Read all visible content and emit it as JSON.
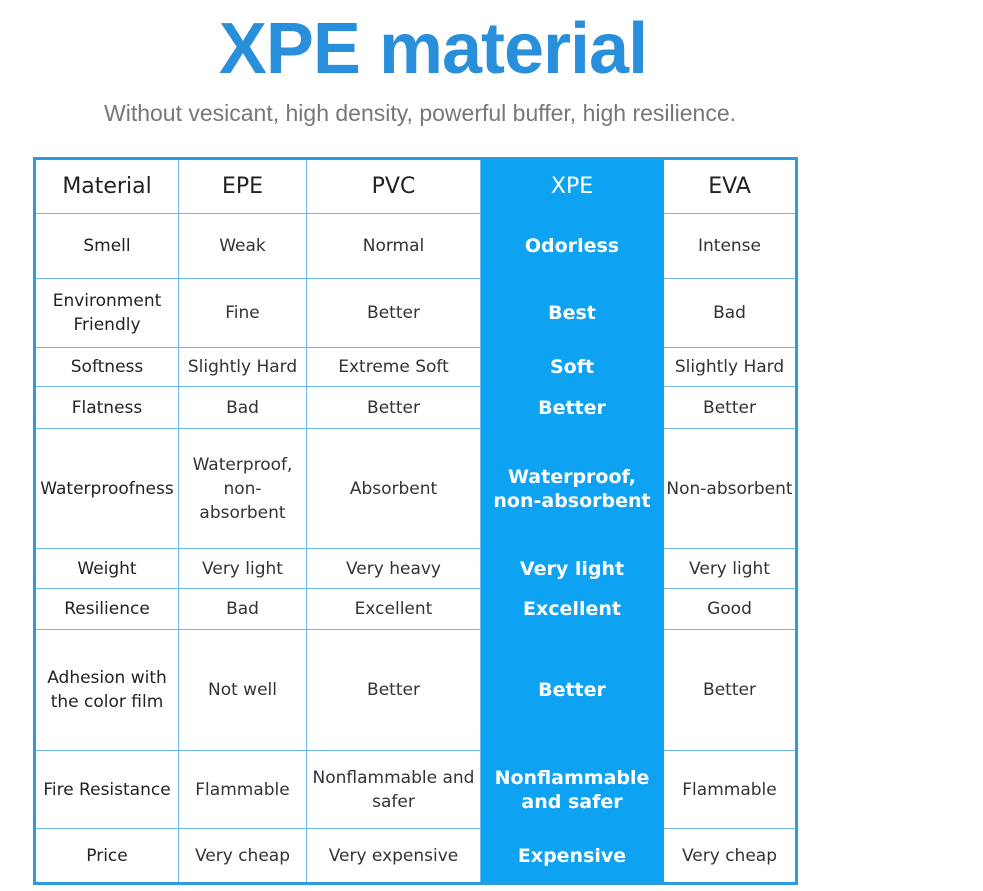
{
  "header": {
    "title": "XPE material",
    "subtitle": "Without vesicant, high density, powerful buffer, high resilience."
  },
  "table": {
    "columns": [
      "Material",
      "EPE",
      "PVC",
      "XPE",
      "EVA"
    ],
    "rows": [
      [
        "Smell",
        "Weak",
        "Normal",
        "Odorless",
        "Intense"
      ],
      [
        "Environment Friendly",
        "Fine",
        "Better",
        "Best",
        "Bad"
      ],
      [
        "Softness",
        "Slightly Hard",
        "Extreme Soft",
        "Soft",
        "Slightly Hard"
      ],
      [
        "Flatness",
        "Bad",
        "Better",
        "Better",
        "Better"
      ],
      [
        "Waterproofness",
        "Waterproof, non-absorbent",
        "Absorbent",
        "Waterproof, non-absorbent",
        "Non-absorbent"
      ],
      [
        "Weight",
        "Very light",
        "Very heavy",
        "Very light",
        "Very light"
      ],
      [
        "Resilience",
        "Bad",
        "Excellent",
        "Excellent",
        "Good"
      ],
      [
        "Adhesion with the color film",
        "Not well",
        "Better",
        "Better",
        "Better"
      ],
      [
        "Fire Resistance",
        "Flammable",
        "Nonflammable and safer",
        "Nonflammable and safer",
        "Flammable"
      ],
      [
        "Price",
        "Very cheap",
        "Very expensive",
        "Expensive",
        "Very cheap"
      ]
    ]
  }
}
